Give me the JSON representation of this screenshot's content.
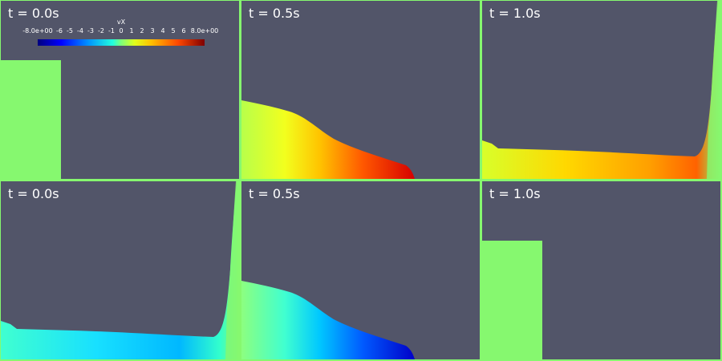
{
  "panels": [
    {
      "time_label": "t = 0.0s"
    },
    {
      "time_label": "t = 0.5s"
    },
    {
      "time_label": "t = 1.0s"
    },
    {
      "time_label": "t = 0.0s"
    },
    {
      "time_label": "t = 0.5s"
    },
    {
      "time_label": "t = 1.0s"
    }
  ],
  "colorbar": {
    "title": "vX",
    "ticks": [
      "-8.0e+00",
      "-6",
      "-5",
      "-4",
      "-3",
      "-2",
      "-1",
      "0",
      "1",
      "2",
      "3",
      "4",
      "5",
      "6",
      "8.0e+00"
    ]
  },
  "colors": {
    "background": "#525569",
    "fluid_static": "#86f86f",
    "border": "#86f86f"
  }
}
